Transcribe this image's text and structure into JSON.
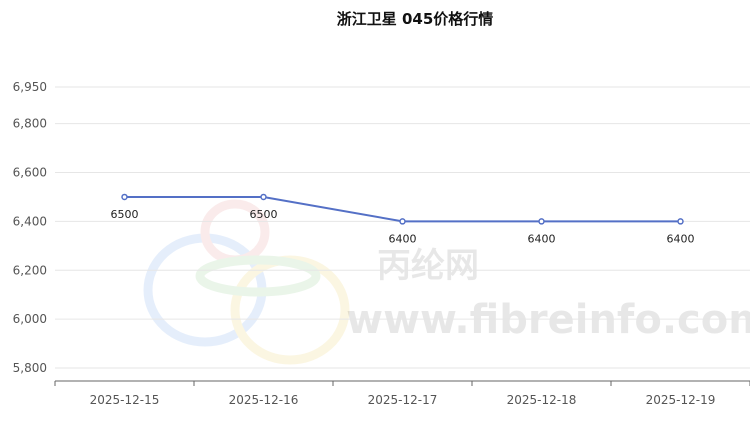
{
  "chart_data": {
    "type": "line",
    "title": "浙江卫星 045价格行情",
    "xlabel": "",
    "ylabel": "",
    "categories": [
      "2025-12-15",
      "2025-12-16",
      "2025-12-17",
      "2025-12-18",
      "2025-12-19"
    ],
    "series": [
      {
        "values": [
          6500,
          6500,
          6400,
          6400,
          6400
        ],
        "data_labels": [
          "6500",
          "6500",
          "6400",
          "6400",
          "6400"
        ]
      }
    ],
    "ylim": [
      5800,
      6950
    ],
    "yticks": [
      5800,
      6000,
      6200,
      6400,
      6600,
      6800,
      6950
    ],
    "ytick_labels": [
      "5,800",
      "6,000",
      "6,200",
      "6,400",
      "6,600",
      "6,800",
      "6,950"
    ],
    "grid": true,
    "legend": "none",
    "colors": {
      "line": "#5470c6",
      "grid": "#e6e6e6",
      "axis": "#666666"
    }
  },
  "watermark": {
    "cn": "丙纶网",
    "url": "www.fibreinfo.com"
  }
}
